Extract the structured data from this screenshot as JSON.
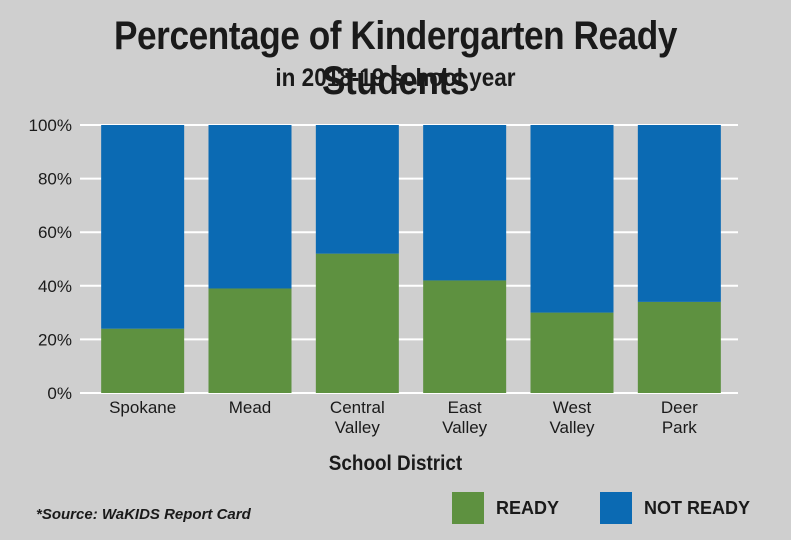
{
  "title": "Percentage of Kindergarten Ready Students",
  "subtitle": "in 2018-19 school year",
  "source": "*Source: WaKIDS Report Card",
  "colors": {
    "ready": "#5e9140",
    "not_ready": "#0b6ab3",
    "grid": "#ffffff",
    "background": "#cfcfcf"
  },
  "chart_data": {
    "type": "bar",
    "stacked": true,
    "xlabel": "School District",
    "ylabel": "",
    "ylim": [
      0,
      100
    ],
    "yticks": [
      "0%",
      "20%",
      "40%",
      "60%",
      "80%",
      "100%"
    ],
    "categories": [
      [
        "Spokane"
      ],
      [
        "Mead"
      ],
      [
        "Central",
        "Valley"
      ],
      [
        "East",
        "Valley"
      ],
      [
        "West",
        "Valley"
      ],
      [
        "Deer",
        "Park"
      ]
    ],
    "series": [
      {
        "name": "READY",
        "values": [
          24,
          39,
          52,
          42,
          30,
          34
        ]
      },
      {
        "name": "NOT READY",
        "values": [
          76,
          61,
          48,
          58,
          70,
          66
        ]
      }
    ],
    "legend_position": "bottom-right",
    "grid": true
  }
}
